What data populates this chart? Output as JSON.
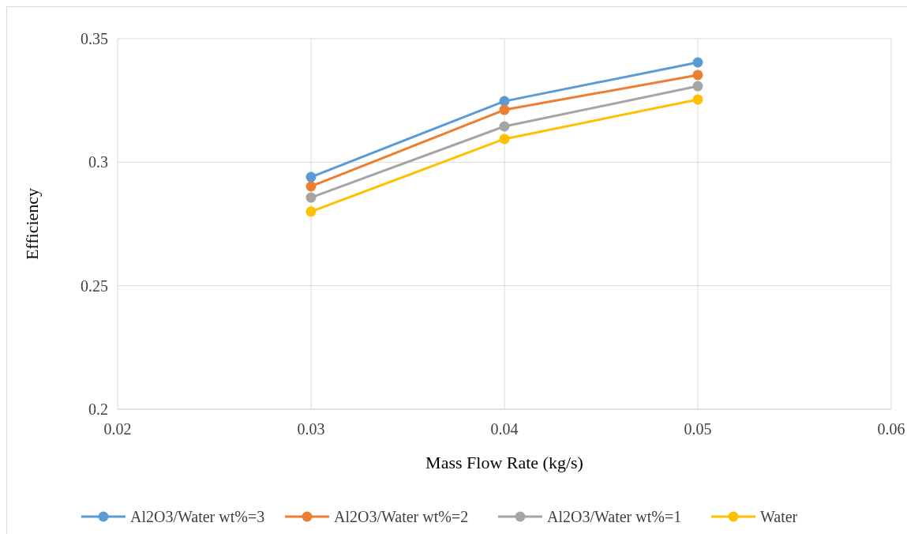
{
  "chart_data": {
    "type": "line",
    "xlabel": "Mass Flow Rate (kg/s)",
    "ylabel": "Efficiency",
    "x": [
      0.03,
      0.04,
      0.05
    ],
    "series": [
      {
        "name": "Al2O3/Water wt%=3",
        "color": "#5b9bd5",
        "values": [
          0.294,
          0.3247,
          0.3404
        ]
      },
      {
        "name": "Al2O3/Water wt%=2",
        "color": "#ed7d31",
        "values": [
          0.2902,
          0.3212,
          0.3353
        ]
      },
      {
        "name": "Al2O3/Water wt%=1",
        "color": "#a5a5a5",
        "values": [
          0.2857,
          0.3145,
          0.3308
        ]
      },
      {
        "name": "Water",
        "color": "#ffc000",
        "values": [
          0.28,
          0.3094,
          0.3254
        ]
      }
    ],
    "xlim": [
      0.02,
      0.06
    ],
    "xticks": [
      0.02,
      0.03,
      0.04,
      0.05,
      0.06
    ],
    "ylim": [
      0.2,
      0.35
    ],
    "yticks": [
      0.2,
      0.25,
      0.3,
      0.35
    ],
    "grid": true,
    "legend": "bottom",
    "marker": "circle",
    "line_style": "solid"
  }
}
